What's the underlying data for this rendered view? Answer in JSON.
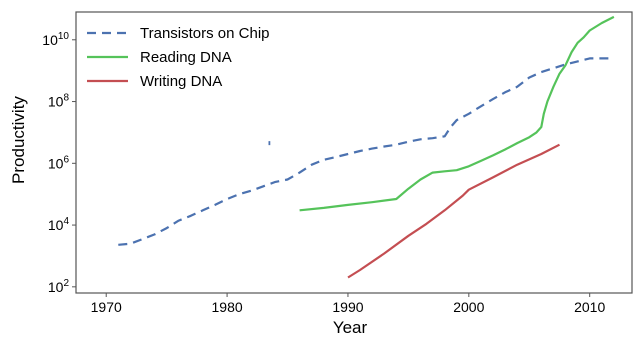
{
  "chart_data": {
    "type": "line",
    "title": "",
    "xlabel": "Year",
    "ylabel": "Productivity",
    "xlim": [
      1967.5,
      2013.5
    ],
    "ylim": [
      2,
      4.1
    ],
    "y_scale": "log",
    "x_ticks": [
      1970,
      1980,
      1990,
      2000,
      2010
    ],
    "y_ticks": [
      {
        "base": "10",
        "exp": "2",
        "exponent_value": 2
      },
      {
        "base": "10",
        "exp": "4",
        "exponent_value": 4
      },
      {
        "base": "10",
        "exp": "6",
        "exponent_value": 6
      },
      {
        "base": "10",
        "exp": "8",
        "exponent_value": 8
      },
      {
        "base": "10",
        "exp": "10",
        "exponent_value": 10
      }
    ],
    "legend_position": "top-left",
    "grid": false,
    "series": [
      {
        "name": "Transistors on Chip",
        "color": "#4C72B0",
        "style": "dashed",
        "x": [
          1971,
          1972,
          1973,
          1974,
          1975,
          1976,
          1977,
          1978,
          1979,
          1980,
          1981,
          1982,
          1983,
          1984,
          1985,
          1986,
          1987,
          1988,
          1989,
          1990,
          1991,
          1992,
          1993,
          1994,
          1995,
          1996,
          1997,
          1998,
          1998.5,
          1999,
          2000,
          2001,
          2002,
          2003,
          2004,
          2005,
          2006,
          2007,
          2008,
          2009,
          2010,
          2011,
          2012
        ],
        "y": [
          2300,
          2500,
          3500,
          5000,
          8000,
          14000,
          20000,
          30000,
          45000,
          70000,
          100000,
          130000,
          180000,
          250000,
          300000,
          500000,
          900000,
          1300000,
          1600000,
          2000000,
          2500000,
          3000000,
          3500000,
          4000000,
          5000000,
          6000000,
          6500000,
          7500000,
          15000000,
          25000000,
          40000000,
          70000000,
          120000000,
          200000000,
          300000000,
          600000000,
          900000000,
          1200000000,
          1600000000,
          2000000000,
          2500000000,
          2500000000,
          2500000000
        ]
      },
      {
        "name": "Reading DNA",
        "color": "#55C35A",
        "style": "solid",
        "x": [
          1986,
          1988,
          1990,
          1992,
          1994,
          1995,
          1996,
          1997,
          1998,
          1999,
          2000,
          2001,
          2002,
          2003,
          2004,
          2005,
          2005.6,
          2006,
          2006.2,
          2006.5,
          2007,
          2007.5,
          2008,
          2008.5,
          2009,
          2009.5,
          2010,
          2011,
          2012
        ],
        "y": [
          30000,
          36000,
          45000,
          55000,
          70000,
          150000,
          300000,
          500000,
          550000,
          600000,
          800000,
          1200000,
          1800000,
          2800000,
          4500000,
          7000000,
          10000000,
          15000000,
          40000000,
          100000000,
          300000000,
          800000000,
          1500000000,
          4000000000,
          8000000000,
          12000000000,
          20000000000,
          35000000000,
          55000000000
        ]
      },
      {
        "name": "Writing DNA",
        "color": "#C44E52",
        "style": "solid",
        "x": [
          1990,
          1991,
          1993,
          1995,
          1996.5,
          1998,
          1999.5,
          2000,
          2002,
          2004,
          2006,
          2007.5
        ],
        "y": [
          200,
          350,
          1200,
          4500,
          11000,
          30000,
          90000,
          140000,
          350000,
          900000,
          2000000,
          4000000
        ]
      }
    ],
    "stray_marks": [
      {
        "x": 1983.5,
        "y": 4500000
      }
    ]
  }
}
